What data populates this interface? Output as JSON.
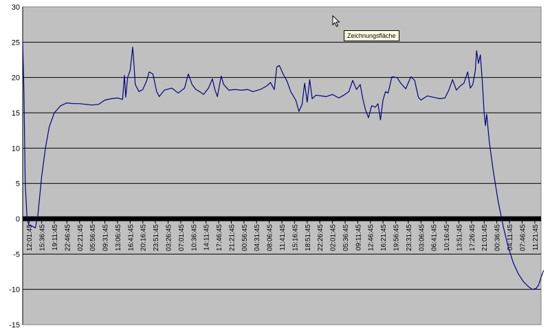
{
  "chart_data": {
    "type": "line",
    "title": "",
    "xlabel": "",
    "ylabel": "",
    "ylim": [
      -15,
      30
    ],
    "yticks": [
      -15,
      -10,
      -5,
      0,
      5,
      10,
      15,
      20,
      25,
      30
    ],
    "grid": true,
    "legend": "none",
    "plot_area_color": "#c0c0c0",
    "line_color": "#000080",
    "x_tick_labels": [
      "12:01:45",
      "15:36:45",
      "19:11:45",
      "22:46:45",
      "02:21:45",
      "05:56:45",
      "09:31:45",
      "13:06:45",
      "16:41:45",
      "20:16:45",
      "23:51:45",
      "03:26:45",
      "07:01:45",
      "10:36:45",
      "14:11:45",
      "17:46:45",
      "21:21:45",
      "00:56:45",
      "04:31:45",
      "08:06:45",
      "11:41:45",
      "15:16:45",
      "18:51:45",
      "22:26:45",
      "02:01:45",
      "05:36:45",
      "09:11:45",
      "12:46:45",
      "16:21:45",
      "19:56:45",
      "23:31:45",
      "03:06:45",
      "06:41:45",
      "10:16:45",
      "13:51:45",
      "17:26:45",
      "21:01:45",
      "00:36:45",
      "04:11:45",
      "07:46:45",
      "11:21:45"
    ],
    "series": [
      {
        "values": [
          [
            0,
            25
          ],
          [
            0.1,
            18
          ],
          [
            0.2,
            5
          ],
          [
            0.35,
            0
          ],
          [
            0.5,
            -1
          ],
          [
            0.7,
            -1
          ],
          [
            1.0,
            -1.3
          ],
          [
            1.2,
            0.5
          ],
          [
            1.5,
            6
          ],
          [
            1.8,
            10
          ],
          [
            2.1,
            13
          ],
          [
            2.5,
            15
          ],
          [
            3,
            16
          ],
          [
            3.5,
            16.4
          ],
          [
            4,
            16.3
          ],
          [
            4.5,
            16.3
          ],
          [
            5,
            16.2
          ],
          [
            5.5,
            16.1
          ],
          [
            6,
            16.2
          ],
          [
            6.5,
            16.8
          ],
          [
            7,
            17
          ],
          [
            7.5,
            17.1
          ],
          [
            7.9,
            16.9
          ],
          [
            8.05,
            20.3
          ],
          [
            8.15,
            17.2
          ],
          [
            8.3,
            20
          ],
          [
            8.5,
            21
          ],
          [
            8.7,
            24.3
          ],
          [
            8.8,
            22
          ],
          [
            8.9,
            19
          ],
          [
            9.2,
            18
          ],
          [
            9.5,
            18.3
          ],
          [
            9.8,
            19.5
          ],
          [
            10,
            20.8
          ],
          [
            10.3,
            20.5
          ],
          [
            10.6,
            18
          ],
          [
            10.8,
            17.3
          ],
          [
            11.2,
            18.2
          ],
          [
            11.8,
            18.5
          ],
          [
            12.3,
            17.8
          ],
          [
            12.8,
            18.5
          ],
          [
            13.1,
            20.5
          ],
          [
            13.4,
            19
          ],
          [
            13.7,
            18.3
          ],
          [
            14,
            18
          ],
          [
            14.3,
            17.6
          ],
          [
            14.7,
            18.5
          ],
          [
            15,
            19.8
          ],
          [
            15.2,
            18.3
          ],
          [
            15.4,
            17.3
          ],
          [
            15.7,
            20.2
          ],
          [
            15.9,
            19
          ],
          [
            16.3,
            18.2
          ],
          [
            16.8,
            18.3
          ],
          [
            17.3,
            18.2
          ],
          [
            17.8,
            18.3
          ],
          [
            18.2,
            18
          ],
          [
            18.8,
            18.3
          ],
          [
            19.3,
            18.8
          ],
          [
            19.6,
            19.3
          ],
          [
            19.9,
            18.3
          ],
          [
            20.1,
            21.5
          ],
          [
            20.3,
            21.7
          ],
          [
            20.6,
            20.5
          ],
          [
            20.9,
            19.5
          ],
          [
            21.2,
            18
          ],
          [
            21.6,
            16.8
          ],
          [
            21.85,
            15.2
          ],
          [
            22.1,
            16.2
          ],
          [
            22.3,
            19.2
          ],
          [
            22.5,
            16.5
          ],
          [
            22.7,
            19.7
          ],
          [
            22.9,
            17
          ],
          [
            23.2,
            17.5
          ],
          [
            23.6,
            17.4
          ],
          [
            24,
            17.3
          ],
          [
            24.5,
            17.6
          ],
          [
            25,
            17.1
          ],
          [
            25.4,
            17.5
          ],
          [
            25.8,
            18
          ],
          [
            26.1,
            19.6
          ],
          [
            26.4,
            18.3
          ],
          [
            26.7,
            19
          ],
          [
            26.9,
            17
          ],
          [
            27.1,
            15.5
          ],
          [
            27.35,
            14.3
          ],
          [
            27.6,
            16
          ],
          [
            27.9,
            15.8
          ],
          [
            28.1,
            16.3
          ],
          [
            28.3,
            14
          ],
          [
            28.5,
            16.8
          ],
          [
            28.7,
            18
          ],
          [
            28.9,
            17.8
          ],
          [
            29.2,
            20.1
          ],
          [
            29.6,
            20
          ],
          [
            29.9,
            19.2
          ],
          [
            30.3,
            18.4
          ],
          [
            30.7,
            20.1
          ],
          [
            31,
            19.6
          ],
          [
            31.3,
            17.2
          ],
          [
            31.5,
            16.8
          ],
          [
            32,
            17.4
          ],
          [
            32.5,
            17.2
          ],
          [
            33,
            17
          ],
          [
            33.4,
            17.1
          ],
          [
            33.7,
            18.2
          ],
          [
            34,
            19.7
          ],
          [
            34.3,
            18.2
          ],
          [
            34.6,
            18.8
          ],
          [
            34.9,
            19.2
          ],
          [
            35.2,
            20.8
          ],
          [
            35.4,
            18.5
          ],
          [
            35.6,
            19
          ],
          [
            35.8,
            21
          ],
          [
            35.9,
            23.8
          ],
          [
            36.05,
            22
          ],
          [
            36.2,
            23.2
          ],
          [
            36.35,
            19.5
          ],
          [
            36.5,
            15
          ],
          [
            36.6,
            13.2
          ],
          [
            36.7,
            14.8
          ],
          [
            36.9,
            11
          ],
          [
            37.2,
            7
          ],
          [
            37.6,
            2.5
          ],
          [
            38,
            -1
          ],
          [
            38.4,
            -4
          ],
          [
            38.8,
            -6.2
          ],
          [
            39.2,
            -7.8
          ],
          [
            39.6,
            -8.9
          ],
          [
            40,
            -9.6
          ],
          [
            40.3,
            -10
          ],
          [
            40.6,
            -9.9
          ],
          [
            40.8,
            -9.4
          ],
          [
            41,
            -8.3
          ],
          [
            41.2,
            -7.3
          ]
        ]
      }
    ]
  },
  "overlay": {
    "tooltip_text": "Zeichnungsfläche"
  }
}
